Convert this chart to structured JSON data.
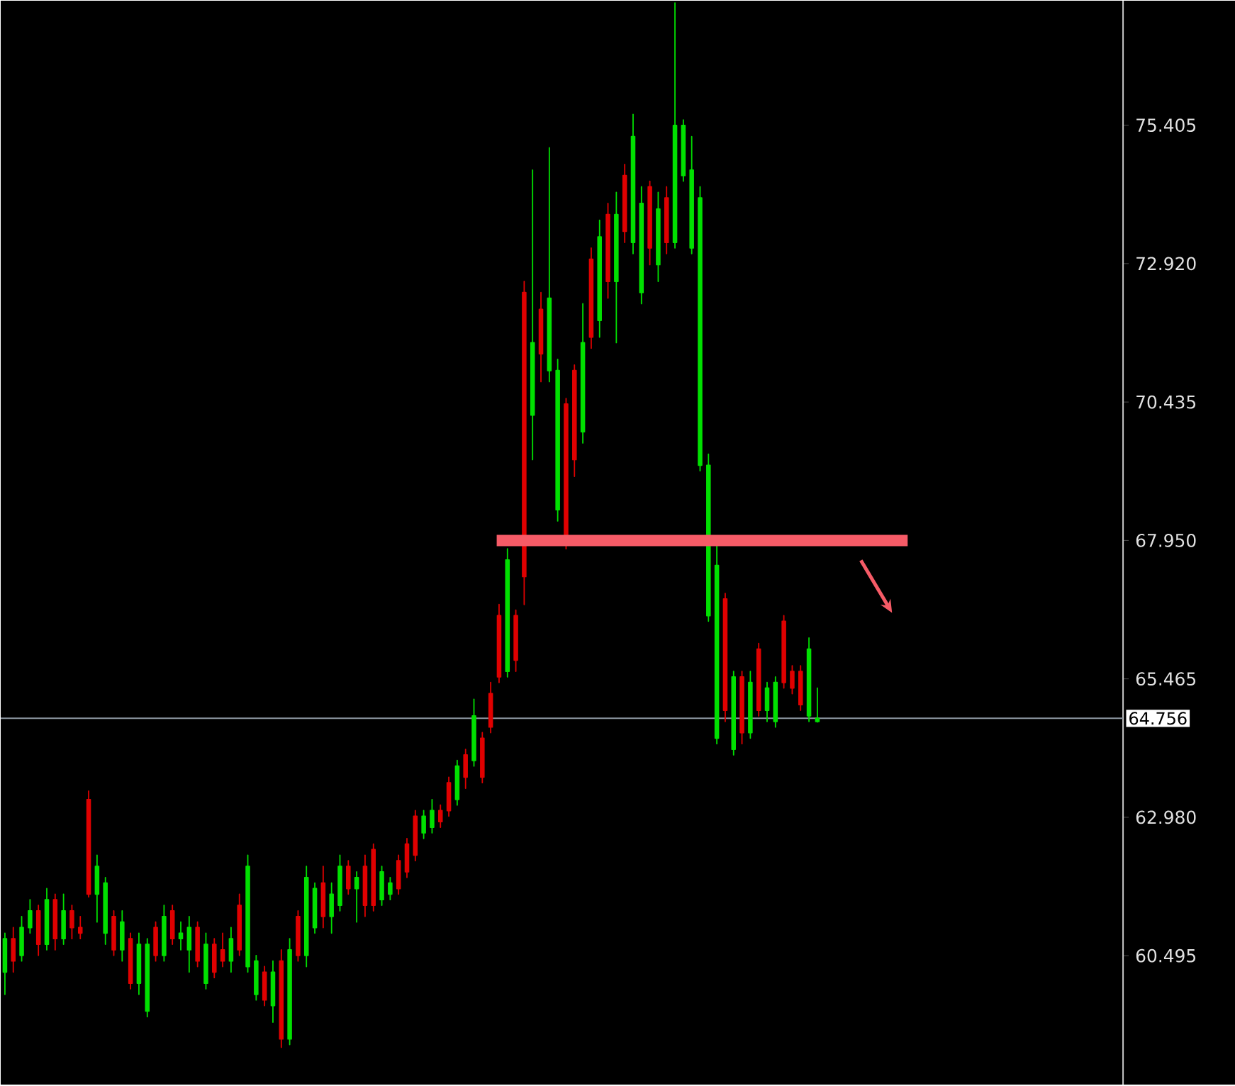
{
  "chart_data": {
    "type": "candlestick",
    "categories": [
      null,
      null,
      null,
      null,
      null,
      null,
      null,
      null,
      null,
      null,
      null,
      null,
      null,
      null,
      null,
      null,
      null,
      null,
      null,
      null,
      null,
      null,
      null,
      null,
      null,
      null,
      null,
      null,
      null,
      null,
      null,
      null,
      null,
      null,
      null,
      null,
      null,
      null,
      null,
      null,
      null,
      null,
      null,
      null,
      null,
      null,
      null,
      null,
      null,
      null,
      null,
      null,
      null,
      null,
      null,
      null,
      null,
      null,
      null,
      null,
      null,
      null,
      null,
      null,
      null,
      null,
      null,
      null,
      null,
      null,
      null,
      null,
      null,
      null,
      null,
      null,
      null,
      null,
      null,
      null,
      null,
      null,
      null,
      null,
      null,
      null,
      null,
      null,
      null,
      null,
      null,
      null,
      null,
      null,
      null,
      null,
      null,
      null,
      null,
      null,
      null,
      null,
      null,
      null,
      null,
      null,
      null,
      null,
      null,
      null,
      null,
      null,
      null,
      null,
      null,
      null,
      null,
      null,
      null,
      null,
      null,
      null,
      null,
      null,
      null,
      null,
      null,
      null,
      null,
      null,
      null,
      null,
      null,
      null
    ],
    "ohlc": [
      [
        60.2,
        60.9,
        59.8,
        60.8
      ],
      [
        60.8,
        61.0,
        60.2,
        60.4
      ],
      [
        60.5,
        61.2,
        60.4,
        61.0
      ],
      [
        61.0,
        61.5,
        60.9,
        61.3
      ],
      [
        61.3,
        61.4,
        60.5,
        60.7
      ],
      [
        60.7,
        61.7,
        60.6,
        61.5
      ],
      [
        61.5,
        61.6,
        60.6,
        60.8
      ],
      [
        60.8,
        61.6,
        60.7,
        61.3
      ],
      [
        61.3,
        61.4,
        60.8,
        61.0
      ],
      [
        61.0,
        61.2,
        60.8,
        60.9
      ],
      [
        63.3,
        63.45,
        61.55,
        61.6
      ],
      [
        61.6,
        62.3,
        61.1,
        62.1
      ],
      [
        60.9,
        61.9,
        60.7,
        61.8
      ],
      [
        61.2,
        61.3,
        60.5,
        60.6
      ],
      [
        60.6,
        61.3,
        60.4,
        61.1
      ],
      [
        60.8,
        60.9,
        59.9,
        60.0
      ],
      [
        60.0,
        60.9,
        59.8,
        60.7
      ],
      [
        59.5,
        60.8,
        59.4,
        60.7
      ],
      [
        61.0,
        61.1,
        60.4,
        60.5
      ],
      [
        60.5,
        61.4,
        60.4,
        61.2
      ],
      [
        61.3,
        61.4,
        60.7,
        60.8
      ],
      [
        60.8,
        61.1,
        60.6,
        60.9
      ],
      [
        60.6,
        61.2,
        60.2,
        61.0
      ],
      [
        61.0,
        61.1,
        60.3,
        60.4
      ],
      [
        60.0,
        60.9,
        59.9,
        60.7
      ],
      [
        60.7,
        60.8,
        60.1,
        60.2
      ],
      [
        60.6,
        60.9,
        60.3,
        60.4
      ],
      [
        60.4,
        61.0,
        60.2,
        60.8
      ],
      [
        61.4,
        61.6,
        60.5,
        60.6
      ],
      [
        60.3,
        62.3,
        60.2,
        62.1
      ],
      [
        59.8,
        60.5,
        59.7,
        60.4
      ],
      [
        60.2,
        60.3,
        59.6,
        59.7
      ],
      [
        59.6,
        60.4,
        59.3,
        60.2
      ],
      [
        60.4,
        60.6,
        58.85,
        59.0
      ],
      [
        59.0,
        60.8,
        58.9,
        60.6
      ],
      [
        61.2,
        61.3,
        60.4,
        60.5
      ],
      [
        60.5,
        62.1,
        60.3,
        61.9
      ],
      [
        61.0,
        61.8,
        60.9,
        61.7
      ],
      [
        61.8,
        62.1,
        61.0,
        61.2
      ],
      [
        61.2,
        61.8,
        60.9,
        61.6
      ],
      [
        61.4,
        62.3,
        61.3,
        62.1
      ],
      [
        62.1,
        62.2,
        61.6,
        61.7
      ],
      [
        61.7,
        62.0,
        61.1,
        61.9
      ],
      [
        62.1,
        62.3,
        61.2,
        61.4
      ],
      [
        62.4,
        62.5,
        61.3,
        61.4
      ],
      [
        61.5,
        62.1,
        61.4,
        62.0
      ],
      [
        61.6,
        61.9,
        61.5,
        61.8
      ],
      [
        62.2,
        62.3,
        61.6,
        61.7
      ],
      [
        62.5,
        62.6,
        61.9,
        62.0
      ],
      [
        63.0,
        63.1,
        62.2,
        62.3
      ],
      [
        62.7,
        63.1,
        62.6,
        63.0
      ],
      [
        62.8,
        63.3,
        62.7,
        63.1
      ],
      [
        63.1,
        63.2,
        62.8,
        62.9
      ],
      [
        63.6,
        63.7,
        63.0,
        63.1
      ],
      [
        63.3,
        64.0,
        63.2,
        63.9
      ],
      [
        64.1,
        64.2,
        63.5,
        63.7
      ],
      [
        64.0,
        65.1,
        63.9,
        64.8
      ],
      [
        64.4,
        64.5,
        63.6,
        63.7
      ],
      [
        65.2,
        65.4,
        64.5,
        64.6
      ],
      [
        66.6,
        66.8,
        65.4,
        65.5
      ],
      [
        65.6,
        67.8,
        65.5,
        67.6
      ],
      [
        66.6,
        66.7,
        65.6,
        65.8
      ],
      [
        72.4,
        72.6,
        66.8,
        67.3
      ],
      [
        70.2,
        74.6,
        69.4,
        71.5
      ],
      [
        72.1,
        72.4,
        70.8,
        71.3
      ],
      [
        71.0,
        75.0,
        70.8,
        72.3
      ],
      [
        68.5,
        71.2,
        68.3,
        71.0
      ],
      [
        70.4,
        70.5,
        67.8,
        68.0
      ],
      [
        71.0,
        71.1,
        69.1,
        69.4
      ],
      [
        69.9,
        72.2,
        69.7,
        71.5
      ],
      [
        73.0,
        73.2,
        71.4,
        71.6
      ],
      [
        71.9,
        73.7,
        71.6,
        73.4
      ],
      [
        73.8,
        74.0,
        72.3,
        72.6
      ],
      [
        72.6,
        74.2,
        71.5,
        73.8
      ],
      [
        74.5,
        74.7,
        73.3,
        73.5
      ],
      [
        73.3,
        75.6,
        73.1,
        75.2
      ],
      [
        72.4,
        74.3,
        72.2,
        74.0
      ],
      [
        74.3,
        74.4,
        72.9,
        73.2
      ],
      [
        72.9,
        74.2,
        72.6,
        73.9
      ],
      [
        74.1,
        74.3,
        73.1,
        73.3
      ],
      [
        73.3,
        77.6,
        73.2,
        75.4
      ],
      [
        74.5,
        75.5,
        74.4,
        75.4
      ],
      [
        73.2,
        75.2,
        73.1,
        74.6
      ],
      [
        69.3,
        74.3,
        69.2,
        74.1
      ],
      [
        66.6,
        69.5,
        66.5,
        69.3
      ],
      [
        64.4,
        67.9,
        64.3,
        67.5
      ],
      [
        66.9,
        67.0,
        64.7,
        64.9
      ],
      [
        64.2,
        65.6,
        64.1,
        65.5
      ],
      [
        65.5,
        65.6,
        64.3,
        64.5
      ],
      [
        64.5,
        65.6,
        64.4,
        65.4
      ],
      [
        66.0,
        66.1,
        64.8,
        64.9
      ],
      [
        64.9,
        65.4,
        64.7,
        65.3
      ],
      [
        64.7,
        65.5,
        64.6,
        65.4
      ],
      [
        66.5,
        66.6,
        65.3,
        65.4
      ],
      [
        65.6,
        65.7,
        65.2,
        65.3
      ],
      [
        65.6,
        65.7,
        64.9,
        65.0
      ],
      [
        64.8,
        66.2,
        64.7,
        66.0
      ],
      [
        64.7,
        65.3,
        64.69,
        64.756
      ],
      null,
      null,
      null,
      null,
      null,
      null,
      null,
      null,
      null,
      null,
      null,
      null,
      null,
      null,
      null,
      null,
      null,
      null,
      null,
      null,
      null,
      null,
      null,
      null,
      null,
      null,
      null,
      null,
      null,
      null,
      null,
      null,
      null,
      null,
      null,
      null
    ],
    "colors": [
      "#00e000",
      "#e00000",
      "#00e000",
      "#00e000",
      "#e00000",
      "#00e000",
      "#e00000",
      "#00e000",
      "#e00000",
      "#e00000",
      "#e00000",
      "#00e000",
      "#00e000",
      "#e00000",
      "#00e000",
      "#e00000",
      "#00e000",
      "#00e000",
      "#e00000",
      "#00e000",
      "#e00000",
      "#00e000",
      "#00e000",
      "#e00000",
      "#00e000",
      "#e00000",
      "#e00000",
      "#00e000",
      "#e00000",
      "#00e000",
      "#00e000",
      "#e00000",
      "#00e000",
      "#e00000",
      "#00e000",
      "#e00000",
      "#00e000",
      "#00e000",
      "#e00000",
      "#00e000",
      "#00e000",
      "#e00000",
      "#00e000",
      "#e00000",
      "#e00000",
      "#00e000",
      "#00e000",
      "#e00000",
      "#e00000",
      "#e00000",
      "#00e000",
      "#00e000",
      "#e00000",
      "#e00000",
      "#00e000",
      "#e00000",
      "#00e000",
      "#e00000",
      "#e00000",
      "#e00000",
      "#00e000",
      "#e00000",
      "#e00000",
      "#00e000",
      "#e00000",
      "#00e000",
      "#00e000",
      "#e00000",
      "#e00000",
      "#00e000",
      "#e00000",
      "#00e000",
      "#e00000",
      "#00e000",
      "#e00000",
      "#00e000",
      "#00e000",
      "#e00000",
      "#00e000",
      "#e00000",
      "#00e000",
      "#00e000",
      "#00e000",
      "#00e000",
      "#00e000",
      "#00e000",
      "#e00000",
      "#00e000",
      "#e00000",
      "#00e000",
      "#e00000",
      "#00e000",
      "#00e000",
      "#e00000",
      "#e00000",
      "#e00000",
      "#00e000",
      "#00e000",
      null,
      null,
      null,
      null,
      null,
      null,
      null,
      null,
      null,
      null,
      null,
      null,
      null,
      null,
      null,
      null,
      null,
      null,
      null,
      null,
      null,
      null,
      null,
      null,
      null,
      null,
      null,
      null,
      null,
      null,
      null,
      null,
      null,
      null,
      null,
      null
    ],
    "ylim": [
      58.18,
      77.64
    ],
    "yticks": [
      {
        "value": 60.495,
        "label": "60.495"
      },
      {
        "value": 62.98,
        "label": "62.980"
      },
      {
        "value": 65.465,
        "label": "65.465"
      },
      {
        "value": 67.95,
        "label": "67.950"
      },
      {
        "value": 70.435,
        "label": "70.435"
      },
      {
        "value": 72.92,
        "label": "72.920"
      },
      {
        "value": 75.405,
        "label": "75.405"
      }
    ],
    "ref_lines": [
      {
        "axis": "y",
        "value": 64.756,
        "label": "64.756",
        "color": "#8c96a0"
      },
      {
        "axis": "y",
        "value": 67.95,
        "color": "#f65b67"
      }
    ]
  }
}
